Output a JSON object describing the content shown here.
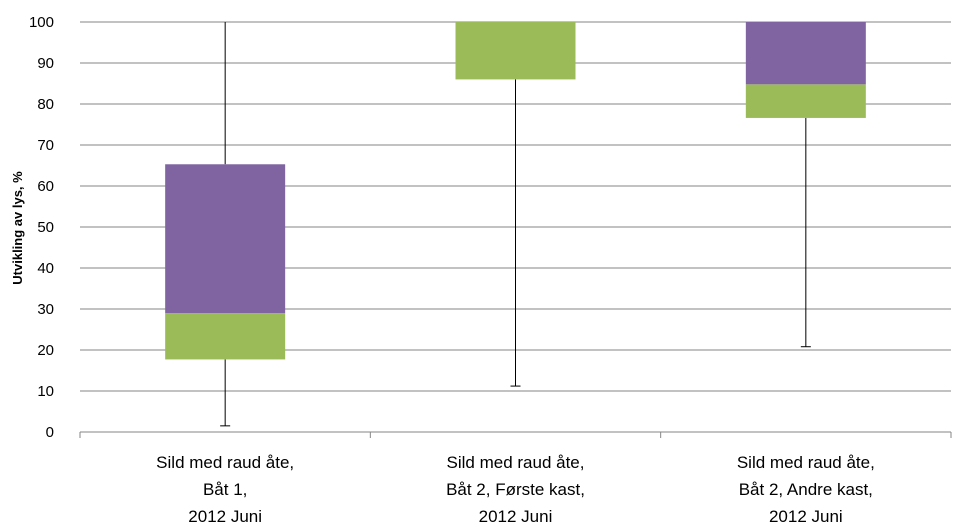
{
  "chart_data": {
    "type": "box",
    "ylabel": "Utvikling av lys, %",
    "ylim": [
      0,
      100
    ],
    "yticks": [
      0,
      10,
      20,
      30,
      40,
      50,
      60,
      70,
      80,
      90,
      100
    ],
    "grid": true,
    "categories": [
      [
        "Sild med raud åte,",
        "Båt 1,",
        "2012 Juni"
      ],
      [
        "Sild med raud åte,",
        "Båt 2,     Første kast,",
        "2012 Juni"
      ],
      [
        "Sild med raud åte,",
        "Båt 2,  Andre kast,",
        "2012 Juni"
      ]
    ],
    "boxes": [
      {
        "min": 1.5,
        "q1": 17.7,
        "median": 29.0,
        "q3": 65.3,
        "max": 100
      },
      {
        "min": 11.2,
        "q1": 86.0,
        "median": 100,
        "q3": 100,
        "max": 100
      },
      {
        "min": 20.8,
        "q1": 76.6,
        "median": 84.8,
        "q3": 100,
        "max": 100
      }
    ],
    "colors": {
      "lower_box": "#9BBB59",
      "upper_box": "#8064A2",
      "grid": "#868686",
      "whisker": "#000000"
    }
  }
}
